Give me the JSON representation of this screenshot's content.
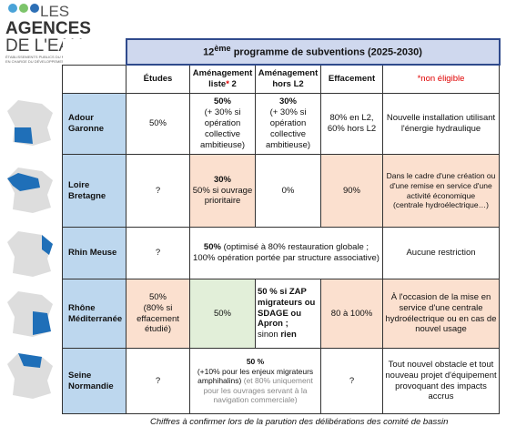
{
  "logo": {
    "line1": "LES",
    "line2": "AGENCES",
    "line3": "DE L'EAU",
    "tagline1": "ÉTABLISSEMENTS PUBLICS DU MINISTÈRE",
    "tagline2": "EN CHARGE DU DÉVELOPPEMENT DURABLE"
  },
  "table": {
    "title": {
      "number": "12",
      "suffix": "ème",
      "rest": " programme de subventions (2025-2030)"
    },
    "columns": [
      {
        "text": "Études"
      },
      {
        "text": "Aménagement liste",
        "star": "*",
        "after": " 2"
      },
      {
        "text": "Aménagement hors L2"
      },
      {
        "text": "Effacement"
      },
      {
        "text": "*non éligible"
      }
    ],
    "rows": [
      {
        "name": "Adour Garonne",
        "cells": [
          [
            "50%"
          ],
          [
            "50%",
            "(+ 30% si opération collective ambitieuse)"
          ],
          [
            "30%",
            "(+ 30% si opération collective ambitieuse)"
          ],
          [
            "80% en L2, 60% hors L2"
          ],
          [
            "Nouvelle installation utilisant l'énergie hydraulique"
          ]
        ]
      },
      {
        "name": "Loire Bretagne",
        "cells": [
          [
            "?"
          ],
          [
            "30%",
            "50% si ouvrage prioritaire"
          ],
          [
            "0%"
          ],
          [
            "90%"
          ],
          [
            "Dans le cadre d'une création ou d'une remise en service d'une activité économique",
            "(centrale hydroélectrique…)"
          ]
        ]
      },
      {
        "name": "Rhin Meuse",
        "cells": [
          [
            "?"
          ],
          [
            "50%",
            " (optimisé à 80% restauration globale ; 100% opération portée par structure associative)"
          ],
          [
            "Aucune restriction"
          ]
        ]
      },
      {
        "name": "Rhône Méditerranée",
        "cells": [
          [
            "50%",
            "(80% si effacement étudié)"
          ],
          [
            "50%"
          ],
          [
            "50 % si ZAP migrateurs ou SDAGE ou Apron ;",
            "sinon ",
            "rien"
          ],
          [
            "80 à 100%"
          ],
          [
            "À l'occasion de la mise en service d'une centrale hydroélectrique ou en cas de nouvel usage"
          ]
        ]
      },
      {
        "name": "Seine Normandie",
        "cells": [
          [
            "?"
          ],
          [
            "50 %",
            "(+10% pour les enjeux migrateurs amphihalins)",
            " (et 80% uniquement pour les ouvrages servant à la navigation commerciale)"
          ],
          [
            "?"
          ],
          [
            "Tout nouvel obstacle et tout nouveau projet d'équipement provoquant des impacts accrus"
          ]
        ]
      }
    ]
  },
  "footnote": "Chiffres à confirmer lors de la parution des délibérations des comité de bassin"
}
